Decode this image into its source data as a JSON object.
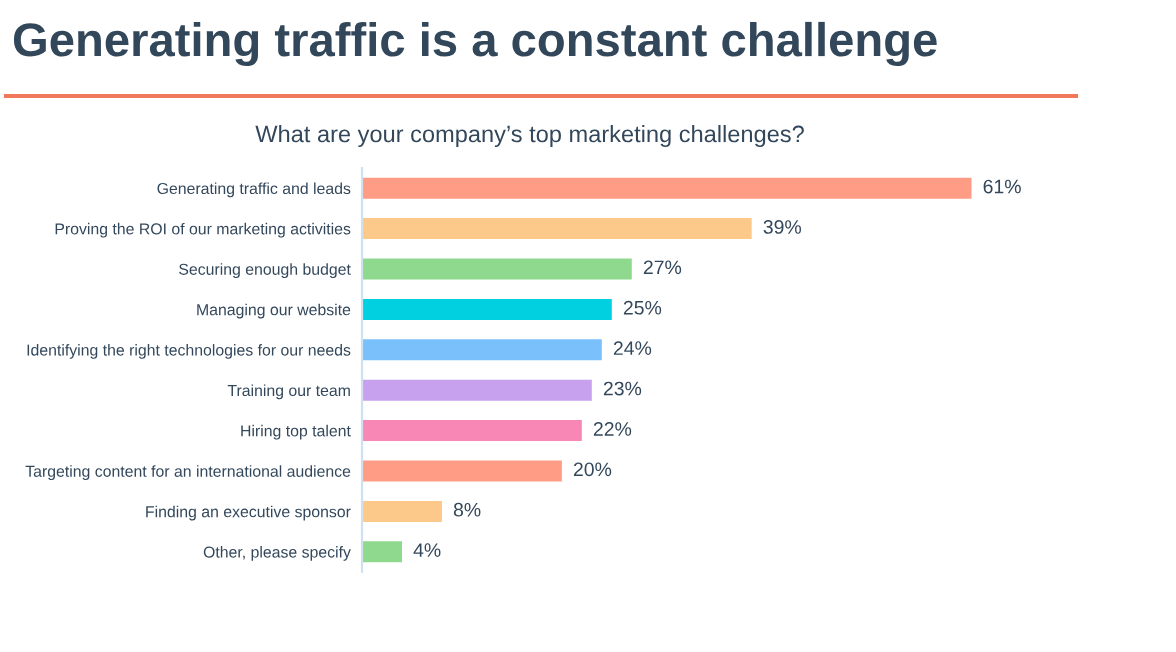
{
  "chart_data": {
    "type": "bar",
    "orientation": "horizontal",
    "title": "Generating traffic is a constant challenge",
    "subtitle": "What are your company’s top marketing challenges?",
    "categories": [
      "Generating traffic and leads",
      "Proving the ROI of our marketing activities",
      "Securing enough budget",
      "Managing our website",
      "Identifying the right technologies for our needs",
      "Training our team",
      "Hiring top talent",
      "Targeting content for an international audience",
      "Finding an executive sponsor",
      "Other, please specify"
    ],
    "values": [
      61,
      39,
      27,
      25,
      24,
      23,
      22,
      20,
      8,
      4
    ],
    "value_labels": [
      "61%",
      "39%",
      "27%",
      "25%",
      "24%",
      "23%",
      "22%",
      "20%",
      "8%",
      "4%"
    ],
    "colors": [
      "#ff9c85",
      "#fdc98a",
      "#8ed98d",
      "#00d0e0",
      "#7ac1fb",
      "#c8a1ee",
      "#f987b5",
      "#ff9c85",
      "#fdc98a",
      "#8ed98d"
    ],
    "grid": false,
    "legend": false,
    "tick_labels": "y"
  }
}
